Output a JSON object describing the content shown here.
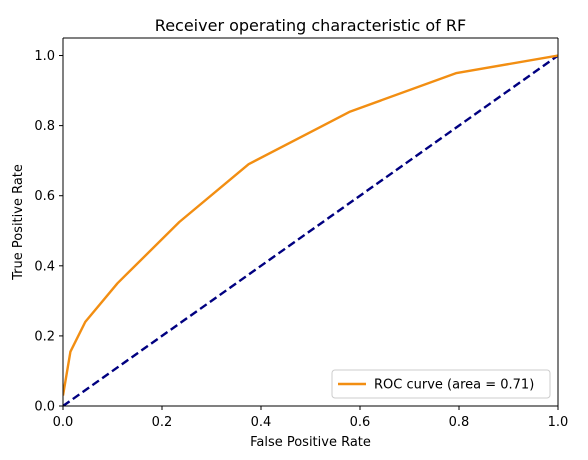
{
  "chart_data": {
    "type": "line",
    "title": "Receiver operating characteristic of RF",
    "xlabel": "False Positive Rate",
    "ylabel": "True Positive Rate",
    "xlim": [
      0.0,
      1.0
    ],
    "ylim": [
      0.0,
      1.05
    ],
    "x_ticks": [
      0.0,
      0.2,
      0.4,
      0.6,
      0.8,
      1.0
    ],
    "y_ticks": [
      0.0,
      0.2,
      0.4,
      0.6,
      0.8,
      1.0
    ],
    "x_tick_labels": [
      "0.0",
      "0.2",
      "0.4",
      "0.6",
      "0.8",
      "1.0"
    ],
    "y_tick_labels": [
      "0.0",
      "0.2",
      "0.4",
      "0.6",
      "0.8",
      "1.0"
    ],
    "grid": false,
    "legend_position": "lower right",
    "series": [
      {
        "name": "ROC curve (area = 0.71)",
        "color": "#f28e12",
        "line_style": "solid",
        "x": [
          0.0,
          0.015,
          0.045,
          0.11,
          0.235,
          0.375,
          0.58,
          0.795,
          1.0
        ],
        "y": [
          0.03,
          0.155,
          0.24,
          0.35,
          0.525,
          0.69,
          0.84,
          0.95,
          1.0
        ]
      },
      {
        "name": "",
        "color": "#000080",
        "line_style": "dashed",
        "x": [
          0.0,
          1.0
        ],
        "y": [
          0.0,
          1.0
        ]
      }
    ]
  }
}
